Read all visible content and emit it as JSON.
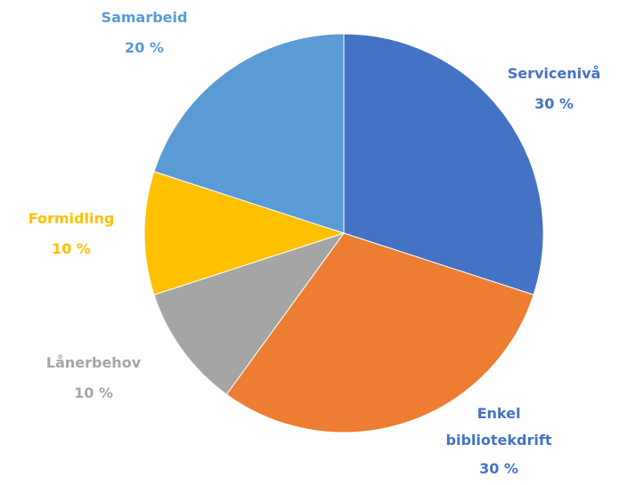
{
  "chart_data": {
    "type": "pie",
    "categories": [
      "Servicenivå",
      "Enkel bibliotekdrift",
      "Lånerbehov",
      "Formidling",
      "Samarbeid"
    ],
    "values": [
      30,
      30,
      10,
      10,
      20
    ],
    "value_labels": [
      "30 %",
      "30 %",
      "10 %",
      "10 %",
      "20 %"
    ],
    "colors": [
      "#4472c4",
      "#ed7d31",
      "#a5a5a5",
      "#ffc000",
      "#5b9bd5"
    ],
    "label_colors": [
      "#4472c4",
      "#4472c4",
      "#a5a5a5",
      "#ffc000",
      "#5b9bd5"
    ]
  }
}
